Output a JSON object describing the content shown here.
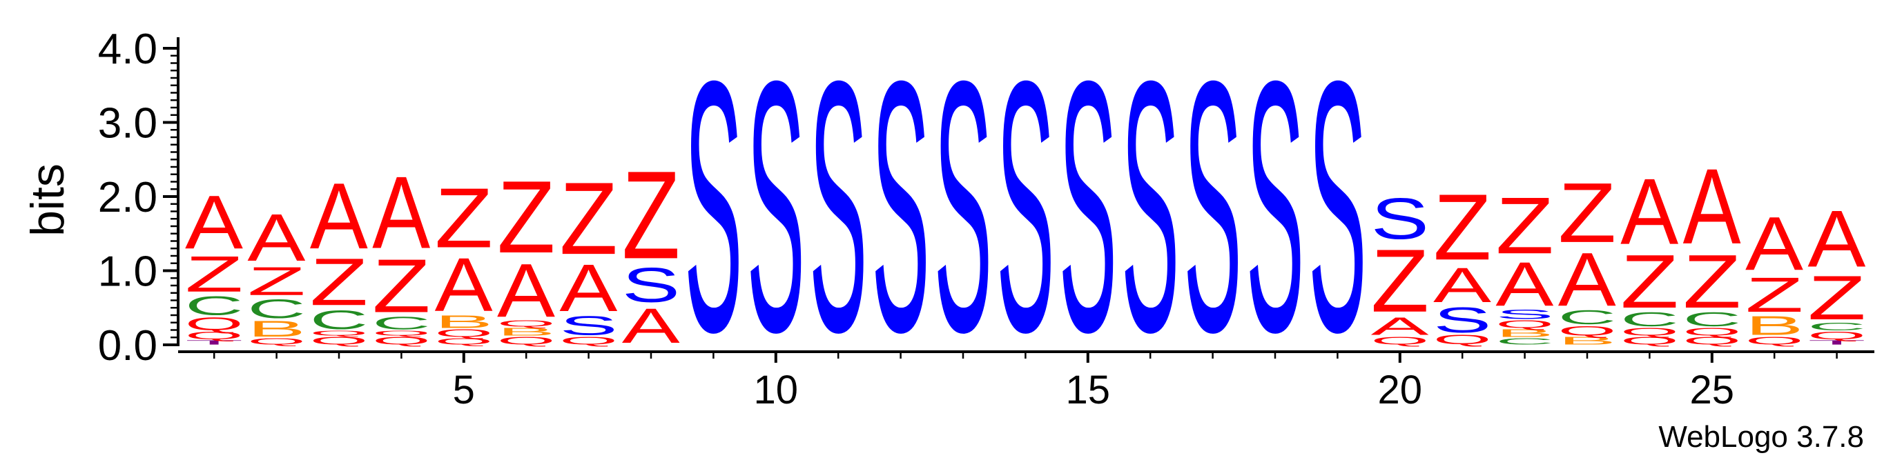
{
  "chart_data": {
    "type": "sequence-logo",
    "ylabel": "bits",
    "ylim": [
      0,
      4.0
    ],
    "y_ticks": [
      "0.0",
      "1.0",
      "2.0",
      "3.0",
      "4.0"
    ],
    "x_ticks": [
      5,
      10,
      15,
      20,
      25
    ],
    "x_range": [
      1,
      27
    ],
    "colors": {
      "A": "#ff0000",
      "Z": "#ff0000",
      "S": "#0000ff",
      "C": "#228b22",
      "B": "#ff8c00",
      "Q": "#ff0000",
      "T": "#800080"
    },
    "positions": [
      {
        "pos": 1,
        "letters": [
          {
            "l": "T",
            "h": 0.07
          },
          {
            "l": "Q",
            "h": 0.12
          },
          {
            "l": "Q",
            "h": 0.2
          },
          {
            "l": "C",
            "h": 0.3
          },
          {
            "l": "Z",
            "h": 0.57
          },
          {
            "l": "A",
            "h": 0.85
          }
        ]
      },
      {
        "pos": 2,
        "letters": [
          {
            "l": "Q",
            "h": 0.1
          },
          {
            "l": "B",
            "h": 0.25
          },
          {
            "l": "C",
            "h": 0.3
          },
          {
            "l": "Z",
            "h": 0.45
          },
          {
            "l": "A",
            "h": 0.75
          }
        ]
      },
      {
        "pos": 3,
        "letters": [
          {
            "l": "Q",
            "h": 0.12
          },
          {
            "l": "Q",
            "h": 0.08
          },
          {
            "l": "C",
            "h": 0.3
          },
          {
            "l": "Z",
            "h": 0.75
          },
          {
            "l": "A",
            "h": 1.05
          }
        ]
      },
      {
        "pos": 4,
        "letters": [
          {
            "l": "Q",
            "h": 0.12
          },
          {
            "l": "Q",
            "h": 0.08
          },
          {
            "l": "C",
            "h": 0.2
          },
          {
            "l": "Z",
            "h": 0.85
          },
          {
            "l": "A",
            "h": 1.15
          }
        ]
      },
      {
        "pos": 5,
        "letters": [
          {
            "l": "Q",
            "h": 0.1
          },
          {
            "l": "Q",
            "h": 0.12
          },
          {
            "l": "B",
            "h": 0.2
          },
          {
            "l": "A",
            "h": 0.85
          },
          {
            "l": "Z",
            "h": 0.95
          }
        ]
      },
      {
        "pos": 6,
        "letters": [
          {
            "l": "Q",
            "h": 0.12
          },
          {
            "l": "B",
            "h": 0.12
          },
          {
            "l": "Q",
            "h": 0.1
          },
          {
            "l": "A",
            "h": 0.85
          },
          {
            "l": "Z",
            "h": 1.15
          }
        ]
      },
      {
        "pos": 7,
        "letters": [
          {
            "l": "Q",
            "h": 0.12
          },
          {
            "l": "S",
            "h": 0.3
          },
          {
            "l": "A",
            "h": 0.75
          },
          {
            "l": "Z",
            "h": 1.15
          }
        ]
      },
      {
        "pos": 8,
        "letters": [
          {
            "l": "A",
            "h": 0.55
          },
          {
            "l": "S",
            "h": 0.55
          },
          {
            "l": "Z",
            "h": 1.4
          }
        ]
      },
      {
        "pos": 9,
        "letters": [
          {
            "l": "S",
            "h": 4.0
          }
        ]
      },
      {
        "pos": 10,
        "letters": [
          {
            "l": "S",
            "h": 4.0
          }
        ]
      },
      {
        "pos": 11,
        "letters": [
          {
            "l": "S",
            "h": 4.0
          }
        ]
      },
      {
        "pos": 12,
        "letters": [
          {
            "l": "S",
            "h": 4.0
          }
        ]
      },
      {
        "pos": 13,
        "letters": [
          {
            "l": "S",
            "h": 4.0
          }
        ]
      },
      {
        "pos": 14,
        "letters": [
          {
            "l": "S",
            "h": 4.0
          }
        ]
      },
      {
        "pos": 15,
        "letters": [
          {
            "l": "S",
            "h": 4.0
          }
        ]
      },
      {
        "pos": 16,
        "letters": [
          {
            "l": "S",
            "h": 4.0
          }
        ]
      },
      {
        "pos": 17,
        "letters": [
          {
            "l": "S",
            "h": 4.0
          }
        ]
      },
      {
        "pos": 18,
        "letters": [
          {
            "l": "S",
            "h": 4.0
          }
        ]
      },
      {
        "pos": 19,
        "letters": [
          {
            "l": "S",
            "h": 4.0
          }
        ]
      },
      {
        "pos": 20,
        "letters": [
          {
            "l": "Q",
            "h": 0.12
          },
          {
            "l": "A",
            "h": 0.28
          },
          {
            "l": "Z",
            "h": 1.0
          },
          {
            "l": "S",
            "h": 0.65
          }
        ]
      },
      {
        "pos": 21,
        "letters": [
          {
            "l": "Q",
            "h": 0.15
          },
          {
            "l": "S",
            "h": 0.4
          },
          {
            "l": "A",
            "h": 0.55
          },
          {
            "l": "Z",
            "h": 1.05
          }
        ]
      },
      {
        "pos": 22,
        "letters": [
          {
            "l": "C",
            "h": 0.1
          },
          {
            "l": "B",
            "h": 0.12
          },
          {
            "l": "Q",
            "h": 0.12
          },
          {
            "l": "S",
            "h": 0.15
          },
          {
            "l": "A",
            "h": 0.7
          },
          {
            "l": "Z",
            "h": 0.9
          }
        ]
      },
      {
        "pos": 23,
        "letters": [
          {
            "l": "B",
            "h": 0.12
          },
          {
            "l": "Q",
            "h": 0.15
          },
          {
            "l": "C",
            "h": 0.22
          },
          {
            "l": "A",
            "h": 0.85
          },
          {
            "l": "Z",
            "h": 0.95
          }
        ]
      },
      {
        "pos": 24,
        "letters": [
          {
            "l": "Q",
            "h": 0.12
          },
          {
            "l": "Q",
            "h": 0.12
          },
          {
            "l": "C",
            "h": 0.22
          },
          {
            "l": "Z",
            "h": 0.85
          },
          {
            "l": "A",
            "h": 1.05
          }
        ]
      },
      {
        "pos": 25,
        "letters": [
          {
            "l": "Q",
            "h": 0.12
          },
          {
            "l": "Q",
            "h": 0.12
          },
          {
            "l": "C",
            "h": 0.22
          },
          {
            "l": "Z",
            "h": 0.85
          },
          {
            "l": "A",
            "h": 1.2
          }
        ]
      },
      {
        "pos": 26,
        "letters": [
          {
            "l": "Q",
            "h": 0.12
          },
          {
            "l": "B",
            "h": 0.3
          },
          {
            "l": "Z",
            "h": 0.55
          },
          {
            "l": "A",
            "h": 0.85
          }
        ]
      },
      {
        "pos": 27,
        "letters": [
          {
            "l": "T",
            "h": 0.07
          },
          {
            "l": "Q",
            "h": 0.12
          },
          {
            "l": "C",
            "h": 0.12
          },
          {
            "l": "Z",
            "h": 0.7
          },
          {
            "l": "A",
            "h": 0.9
          }
        ]
      }
    ]
  },
  "footer": {
    "credit": "WebLogo 3.7.8"
  }
}
